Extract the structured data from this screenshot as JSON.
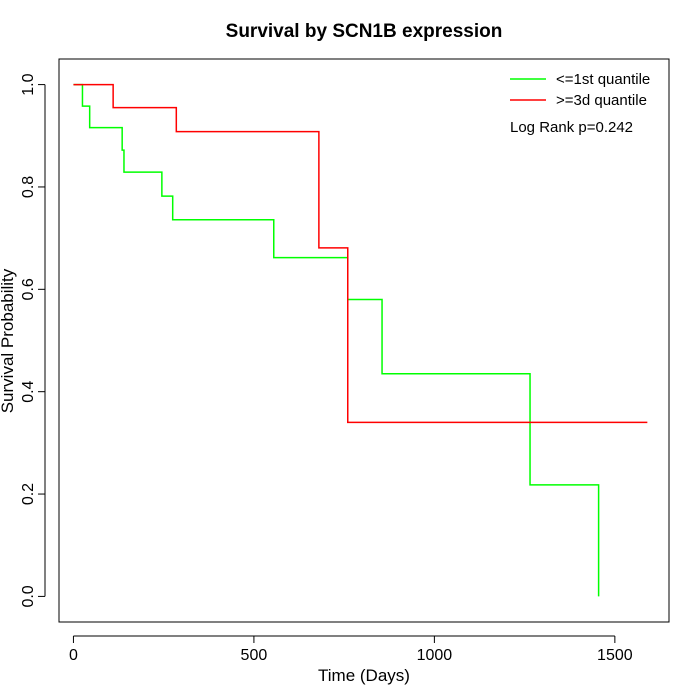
{
  "chart_data": {
    "type": "line",
    "title": "Survival by SCN1B expression",
    "xlabel": "Time (Days)",
    "ylabel": "Survival Probability",
    "xlim": [
      -40,
      1650
    ],
    "ylim": [
      -0.05,
      1.05
    ],
    "x_ticks": [
      0,
      500,
      1000,
      1500
    ],
    "y_ticks": [
      0.0,
      0.2,
      0.4,
      0.6,
      0.8,
      1.0
    ],
    "x_tick_labels": [
      "0",
      "500",
      "1000",
      "1500"
    ],
    "y_tick_labels": [
      "0.0",
      "0.2",
      "0.4",
      "0.6",
      "0.8",
      "1.0"
    ],
    "grid": false,
    "legend_position": "top-right",
    "annotation": "Log Rank p=0.242",
    "series": [
      {
        "name": "<=1st quantile",
        "color": "#00ff00",
        "step": true,
        "x": [
          0,
          25,
          45,
          135,
          140,
          245,
          275,
          555,
          760,
          855,
          1265,
          1455,
          1455
        ],
        "y": [
          1.0,
          0.958,
          0.916,
          0.872,
          0.829,
          0.782,
          0.736,
          0.662,
          0.58,
          0.435,
          0.218,
          0.218,
          0.0
        ]
      },
      {
        "name": ">=3d quantile",
        "color": "#ff0000",
        "step": true,
        "x": [
          0,
          110,
          285,
          680,
          760,
          1590
        ],
        "y": [
          1.0,
          0.955,
          0.908,
          0.681,
          0.34,
          0.34
        ]
      }
    ]
  }
}
